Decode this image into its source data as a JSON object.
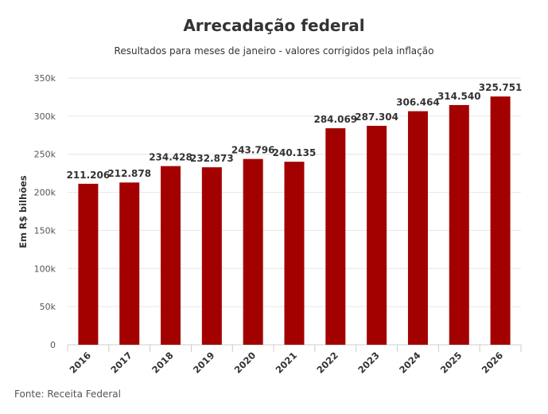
{
  "chart_data": {
    "type": "bar",
    "title": "Arrecadação federal",
    "subtitle": "Resultados para meses de janeiro - valores corrigidos pela inflação",
    "ylabel": "Em R$ bilhões",
    "xlabel": "",
    "ylim": [
      0,
      350000
    ],
    "yticks": [
      0,
      50000,
      100000,
      150000,
      200000,
      250000,
      300000,
      350000
    ],
    "ytick_labels": [
      "0",
      "50k",
      "100k",
      "150k",
      "200k",
      "250k",
      "300k",
      "350k"
    ],
    "categories": [
      "2016",
      "2017",
      "2018",
      "2019",
      "2020",
      "2021",
      "2022",
      "2023",
      "2024",
      "2025",
      "2026"
    ],
    "values": [
      211206,
      212878,
      234428,
      232873,
      243796,
      240135,
      284069,
      287304,
      306464,
      314540,
      325751
    ],
    "value_labels": [
      "211.206",
      "212.878",
      "234.428",
      "232.873",
      "243.796",
      "240.135",
      "284.069",
      "287.304",
      "306.464",
      "314.540",
      "325.751"
    ],
    "bar_color": "#a30000",
    "grid": true,
    "source": "Fonte: Receita Federal"
  }
}
